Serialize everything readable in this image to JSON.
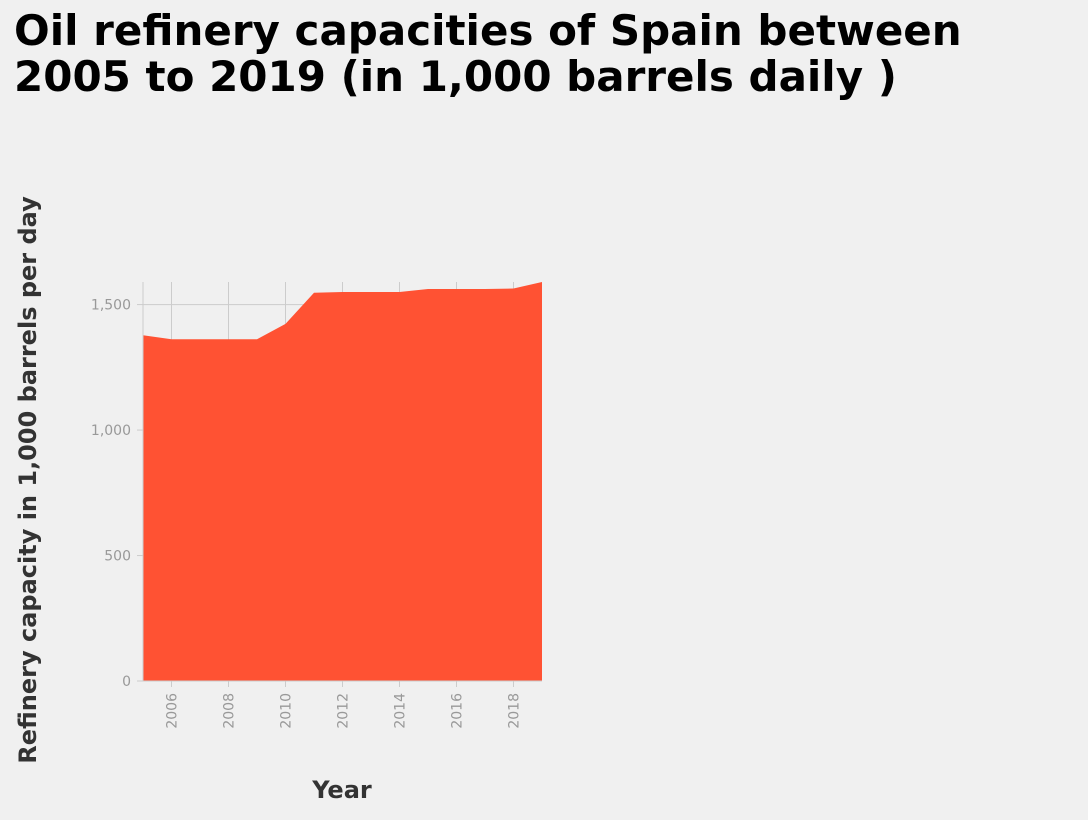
{
  "chart_data": {
    "type": "area",
    "title": "Oil refinery capacities of Spain between 2005 to 2019 (in 1,000 barrels daily )",
    "xlabel": "Year",
    "ylabel": "Refinery capacity in 1,000 barrels per day",
    "x": [
      2005,
      2006,
      2007,
      2008,
      2009,
      2010,
      2011,
      2012,
      2013,
      2014,
      2015,
      2016,
      2017,
      2018,
      2019
    ],
    "series": [
      {
        "values": [
          1378,
          1362,
          1362,
          1362,
          1362,
          1423,
          1547,
          1550,
          1550,
          1550,
          1562,
          1562,
          1562,
          1564,
          1590
        ]
      }
    ],
    "xlim": [
      2005,
      2019
    ],
    "ylim": [
      0,
      1590
    ],
    "x_ticks": [
      2006,
      2008,
      2010,
      2012,
      2014,
      2016,
      2018
    ],
    "x_tick_labels": [
      "2006",
      "2008",
      "2010",
      "2012",
      "2014",
      "2016",
      "2018"
    ],
    "y_ticks": [
      0,
      500,
      1000,
      1500
    ],
    "y_tick_labels": [
      "0",
      "500",
      "1,000",
      "1,500"
    ],
    "grid": true,
    "legend": "none",
    "colors": {
      "area": "#ff5233",
      "grid": "#cccccc",
      "tick_label": "#999999",
      "axis_title": "#333333",
      "background": "#f0f0f0"
    }
  }
}
